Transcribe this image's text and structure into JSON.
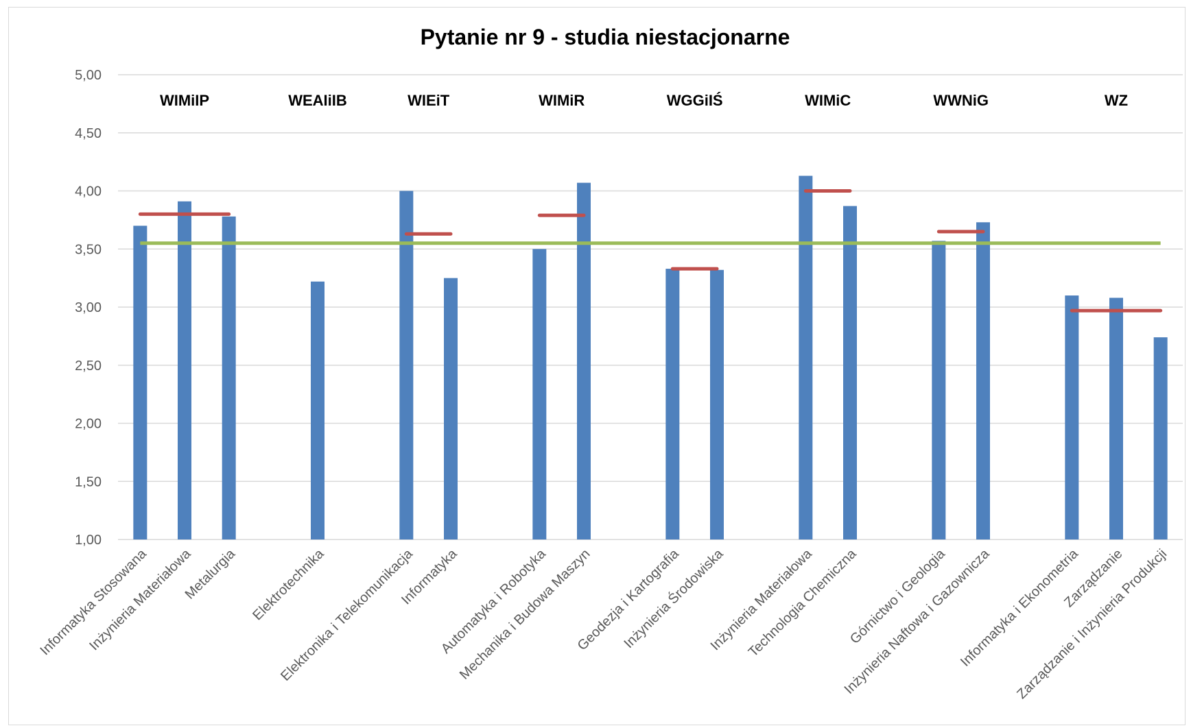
{
  "chart_data": {
    "type": "bar",
    "title": "Pytanie nr 9 - studia niestacjonarne",
    "ylim": [
      1,
      5
    ],
    "yticks": [
      "1,00",
      "1,50",
      "2,00",
      "2,50",
      "3,00",
      "3,50",
      "4,00",
      "4,50",
      "5,00"
    ],
    "ytick_values": [
      1,
      1.5,
      2,
      2.5,
      3,
      3.5,
      4,
      4.5,
      5
    ],
    "grid": true,
    "categories": [
      "Informatyka Stosowana",
      "Inżynieria Materiałowa",
      "Metalurgia",
      "",
      "Elektrotechnika",
      "",
      "Elektronika i Telekomunikacja",
      "Informatyka",
      "",
      "Automatyka i Robotyka",
      "Mechanika i Budowa Maszyn",
      "",
      "Geodezja i Kartografia",
      "Inżynieria Środowiska",
      "",
      "Inżynieria Materiałowa",
      "Technologia Chemiczna",
      "",
      "Górnictwo i Geologia",
      "Inżynieria Naftowa i Gazownicza",
      "",
      "Informatyka i Ekonometria",
      "Zarządzanie",
      "Zarządzanie i Inżynieria Produkcji"
    ],
    "values": [
      3.7,
      3.91,
      3.78,
      null,
      3.22,
      null,
      4.0,
      3.25,
      null,
      3.5,
      4.07,
      null,
      3.33,
      3.32,
      null,
      4.13,
      3.87,
      null,
      3.57,
      3.73,
      null,
      3.1,
      3.08,
      2.74
    ],
    "bar_color": "#4f81bd",
    "overall_average": 3.55,
    "overall_average_color": "#9bbb59",
    "faculty_average_color": "#c0504d",
    "faculties": [
      {
        "name": "WIMiIP",
        "start": 0,
        "end": 2,
        "average": 3.8
      },
      {
        "name": "WEAIiIB",
        "start": 4,
        "end": 4,
        "average": null
      },
      {
        "name": "WIEiT",
        "start": 6,
        "end": 7,
        "average": 3.63
      },
      {
        "name": "WIMiR",
        "start": 9,
        "end": 10,
        "average": 3.79
      },
      {
        "name": "WGGiIŚ",
        "start": 12,
        "end": 13,
        "average": 3.33
      },
      {
        "name": "WIMiC",
        "start": 15,
        "end": 16,
        "average": 4.0
      },
      {
        "name": "WWNiG",
        "start": 18,
        "end": 19,
        "average": 3.65
      },
      {
        "name": "WZ",
        "start": 21,
        "end": 23,
        "average": 2.97
      }
    ]
  }
}
